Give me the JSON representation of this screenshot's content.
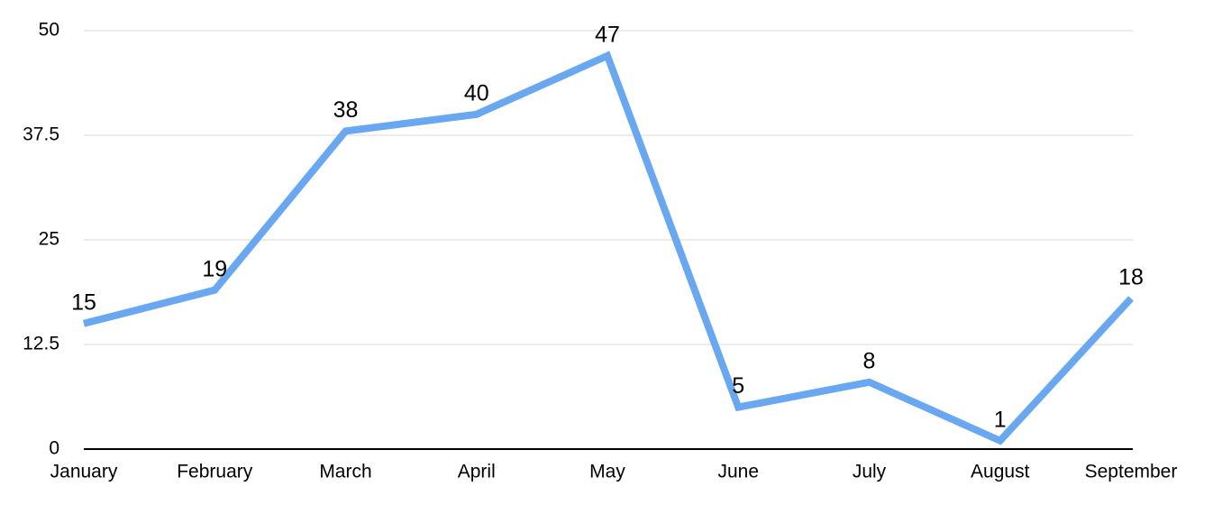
{
  "chart_data": {
    "type": "line",
    "categories": [
      "January",
      "February",
      "March",
      "April",
      "May",
      "June",
      "July",
      "August",
      "September"
    ],
    "values": [
      15,
      19,
      38,
      40,
      47,
      5,
      8,
      1,
      18
    ],
    "color": "#69a7f1",
    "ylim": [
      0,
      50
    ],
    "yticks": [
      0,
      12.5,
      25,
      37.5,
      50
    ],
    "grid": true
  }
}
